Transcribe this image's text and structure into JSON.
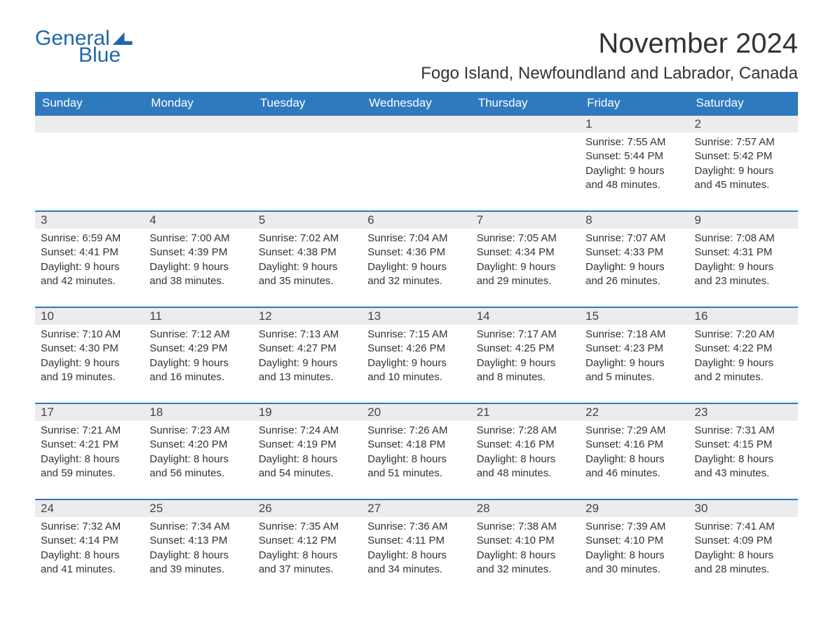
{
  "brand": {
    "general": "General",
    "blue": "Blue"
  },
  "title": "November 2024",
  "location": "Fogo Island, Newfoundland and Labrador, Canada",
  "day_headers": [
    "Sunday",
    "Monday",
    "Tuesday",
    "Wednesday",
    "Thursday",
    "Friday",
    "Saturday"
  ],
  "colors": {
    "header_bg": "#2f7abf",
    "header_text": "#ffffff",
    "row_band": "#ececec",
    "border": "#2f7abf",
    "body_text": "#333333",
    "logo": "#2068a8",
    "page_bg": "#ffffff"
  },
  "fonts": {
    "title_size_pt": 30,
    "location_size_pt": 18,
    "dayhead_size_pt": 13,
    "cell_size_pt": 11
  },
  "weeks": [
    [
      {
        "day": "",
        "sunrise": "",
        "sunset": "",
        "daylight": ""
      },
      {
        "day": "",
        "sunrise": "",
        "sunset": "",
        "daylight": ""
      },
      {
        "day": "",
        "sunrise": "",
        "sunset": "",
        "daylight": ""
      },
      {
        "day": "",
        "sunrise": "",
        "sunset": "",
        "daylight": ""
      },
      {
        "day": "",
        "sunrise": "",
        "sunset": "",
        "daylight": ""
      },
      {
        "day": "1",
        "sunrise": "Sunrise: 7:55 AM",
        "sunset": "Sunset: 5:44 PM",
        "daylight": "Daylight: 9 hours and 48 minutes."
      },
      {
        "day": "2",
        "sunrise": "Sunrise: 7:57 AM",
        "sunset": "Sunset: 5:42 PM",
        "daylight": "Daylight: 9 hours and 45 minutes."
      }
    ],
    [
      {
        "day": "3",
        "sunrise": "Sunrise: 6:59 AM",
        "sunset": "Sunset: 4:41 PM",
        "daylight": "Daylight: 9 hours and 42 minutes."
      },
      {
        "day": "4",
        "sunrise": "Sunrise: 7:00 AM",
        "sunset": "Sunset: 4:39 PM",
        "daylight": "Daylight: 9 hours and 38 minutes."
      },
      {
        "day": "5",
        "sunrise": "Sunrise: 7:02 AM",
        "sunset": "Sunset: 4:38 PM",
        "daylight": "Daylight: 9 hours and 35 minutes."
      },
      {
        "day": "6",
        "sunrise": "Sunrise: 7:04 AM",
        "sunset": "Sunset: 4:36 PM",
        "daylight": "Daylight: 9 hours and 32 minutes."
      },
      {
        "day": "7",
        "sunrise": "Sunrise: 7:05 AM",
        "sunset": "Sunset: 4:34 PM",
        "daylight": "Daylight: 9 hours and 29 minutes."
      },
      {
        "day": "8",
        "sunrise": "Sunrise: 7:07 AM",
        "sunset": "Sunset: 4:33 PM",
        "daylight": "Daylight: 9 hours and 26 minutes."
      },
      {
        "day": "9",
        "sunrise": "Sunrise: 7:08 AM",
        "sunset": "Sunset: 4:31 PM",
        "daylight": "Daylight: 9 hours and 23 minutes."
      }
    ],
    [
      {
        "day": "10",
        "sunrise": "Sunrise: 7:10 AM",
        "sunset": "Sunset: 4:30 PM",
        "daylight": "Daylight: 9 hours and 19 minutes."
      },
      {
        "day": "11",
        "sunrise": "Sunrise: 7:12 AM",
        "sunset": "Sunset: 4:29 PM",
        "daylight": "Daylight: 9 hours and 16 minutes."
      },
      {
        "day": "12",
        "sunrise": "Sunrise: 7:13 AM",
        "sunset": "Sunset: 4:27 PM",
        "daylight": "Daylight: 9 hours and 13 minutes."
      },
      {
        "day": "13",
        "sunrise": "Sunrise: 7:15 AM",
        "sunset": "Sunset: 4:26 PM",
        "daylight": "Daylight: 9 hours and 10 minutes."
      },
      {
        "day": "14",
        "sunrise": "Sunrise: 7:17 AM",
        "sunset": "Sunset: 4:25 PM",
        "daylight": "Daylight: 9 hours and 8 minutes."
      },
      {
        "day": "15",
        "sunrise": "Sunrise: 7:18 AM",
        "sunset": "Sunset: 4:23 PM",
        "daylight": "Daylight: 9 hours and 5 minutes."
      },
      {
        "day": "16",
        "sunrise": "Sunrise: 7:20 AM",
        "sunset": "Sunset: 4:22 PM",
        "daylight": "Daylight: 9 hours and 2 minutes."
      }
    ],
    [
      {
        "day": "17",
        "sunrise": "Sunrise: 7:21 AM",
        "sunset": "Sunset: 4:21 PM",
        "daylight": "Daylight: 8 hours and 59 minutes."
      },
      {
        "day": "18",
        "sunrise": "Sunrise: 7:23 AM",
        "sunset": "Sunset: 4:20 PM",
        "daylight": "Daylight: 8 hours and 56 minutes."
      },
      {
        "day": "19",
        "sunrise": "Sunrise: 7:24 AM",
        "sunset": "Sunset: 4:19 PM",
        "daylight": "Daylight: 8 hours and 54 minutes."
      },
      {
        "day": "20",
        "sunrise": "Sunrise: 7:26 AM",
        "sunset": "Sunset: 4:18 PM",
        "daylight": "Daylight: 8 hours and 51 minutes."
      },
      {
        "day": "21",
        "sunrise": "Sunrise: 7:28 AM",
        "sunset": "Sunset: 4:16 PM",
        "daylight": "Daylight: 8 hours and 48 minutes."
      },
      {
        "day": "22",
        "sunrise": "Sunrise: 7:29 AM",
        "sunset": "Sunset: 4:16 PM",
        "daylight": "Daylight: 8 hours and 46 minutes."
      },
      {
        "day": "23",
        "sunrise": "Sunrise: 7:31 AM",
        "sunset": "Sunset: 4:15 PM",
        "daylight": "Daylight: 8 hours and 43 minutes."
      }
    ],
    [
      {
        "day": "24",
        "sunrise": "Sunrise: 7:32 AM",
        "sunset": "Sunset: 4:14 PM",
        "daylight": "Daylight: 8 hours and 41 minutes."
      },
      {
        "day": "25",
        "sunrise": "Sunrise: 7:34 AM",
        "sunset": "Sunset: 4:13 PM",
        "daylight": "Daylight: 8 hours and 39 minutes."
      },
      {
        "day": "26",
        "sunrise": "Sunrise: 7:35 AM",
        "sunset": "Sunset: 4:12 PM",
        "daylight": "Daylight: 8 hours and 37 minutes."
      },
      {
        "day": "27",
        "sunrise": "Sunrise: 7:36 AM",
        "sunset": "Sunset: 4:11 PM",
        "daylight": "Daylight: 8 hours and 34 minutes."
      },
      {
        "day": "28",
        "sunrise": "Sunrise: 7:38 AM",
        "sunset": "Sunset: 4:10 PM",
        "daylight": "Daylight: 8 hours and 32 minutes."
      },
      {
        "day": "29",
        "sunrise": "Sunrise: 7:39 AM",
        "sunset": "Sunset: 4:10 PM",
        "daylight": "Daylight: 8 hours and 30 minutes."
      },
      {
        "day": "30",
        "sunrise": "Sunrise: 7:41 AM",
        "sunset": "Sunset: 4:09 PM",
        "daylight": "Daylight: 8 hours and 28 minutes."
      }
    ]
  ]
}
